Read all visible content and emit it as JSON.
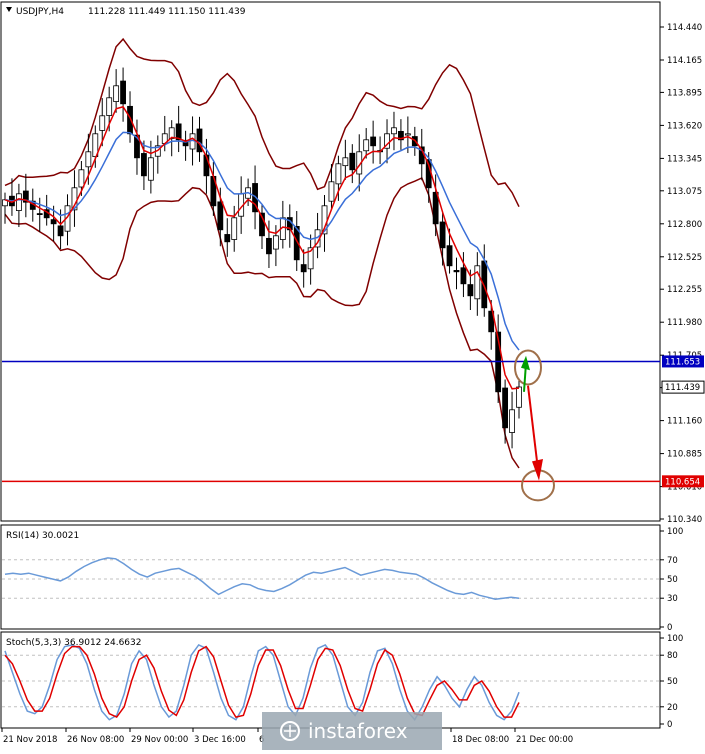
{
  "header": {
    "symbol": "USDJPY,H4",
    "ohlc": "111.228 111.449 111.150 111.439"
  },
  "colors": {
    "band": "#800000",
    "ema_fast": "#e00000",
    "ema_slow": "#3a6fd8",
    "support": "#e00000",
    "resistance": "#0000c0",
    "annotation": "#a0704a",
    "up_arrow": "#00a000",
    "down_arrow": "#e00000",
    "osc": "#6a9ad8"
  },
  "chart_data": [
    {
      "type": "candlestick",
      "title": "USDJPY,H4",
      "price_axis": {
        "ticks": [
          "114.440",
          "114.165",
          "113.895",
          "113.620",
          "113.345",
          "113.075",
          "112.800",
          "112.525",
          "112.255",
          "111.980",
          "111.705",
          "111.435",
          "111.160",
          "110.885",
          "110.610",
          "110.340"
        ],
        "range": [
          110.34,
          114.44
        ]
      },
      "time_axis": [
        "21 Nov 2018",
        "26 Nov 08:00",
        "29 Nov 00:00",
        "3 Dec 16:00",
        "6",
        "18 Dec 08:00",
        "21 Dec 00:00"
      ],
      "levels": [
        {
          "name": "resistance",
          "value": 111.653,
          "label": "111.653"
        },
        {
          "name": "support",
          "value": 110.654,
          "label": "110.654"
        }
      ],
      "current_price": {
        "value": 111.439,
        "label": "111.439"
      },
      "close_series": [
        113.0,
        112.95,
        113.05,
        112.98,
        112.92,
        112.88,
        112.85,
        112.8,
        112.7,
        112.95,
        113.1,
        113.25,
        113.4,
        113.55,
        113.7,
        113.85,
        113.95,
        113.8,
        113.55,
        113.35,
        113.2,
        113.35,
        113.45,
        113.55,
        113.6,
        113.5,
        113.45,
        113.55,
        113.4,
        113.2,
        112.95,
        112.75,
        112.65,
        112.85,
        113.05,
        113.1,
        112.9,
        112.7,
        112.55,
        112.7,
        112.85,
        112.75,
        112.5,
        112.4,
        112.6,
        112.75,
        112.95,
        113.15,
        113.3,
        113.35,
        113.25,
        113.4,
        113.5,
        113.45,
        113.4,
        113.55,
        113.6,
        113.5,
        113.55,
        113.45,
        113.3,
        113.1,
        112.8,
        112.6,
        112.45,
        112.4,
        112.3,
        112.2,
        112.45,
        112.1,
        111.9,
        111.4,
        111.1,
        111.25,
        111.44
      ]
    },
    {
      "type": "line",
      "title": "RSI(14) 30.0021",
      "ticks": [
        "100",
        "70",
        "50",
        "30",
        "0"
      ],
      "ylim": [
        0,
        100
      ],
      "values": [
        55,
        56,
        55,
        56,
        54,
        52,
        50,
        48,
        52,
        58,
        63,
        67,
        70,
        72,
        71,
        66,
        60,
        55,
        52,
        56,
        58,
        60,
        61,
        57,
        53,
        47,
        40,
        34,
        38,
        42,
        45,
        44,
        40,
        38,
        37,
        40,
        44,
        49,
        54,
        57,
        56,
        58,
        60,
        62,
        58,
        54,
        56,
        58,
        60,
        59,
        57,
        56,
        55,
        51,
        46,
        42,
        38,
        35,
        34,
        36,
        33,
        31,
        29,
        30,
        31,
        30
      ]
    },
    {
      "type": "line",
      "title": "Stoch(5,3,3) 36.9012 24.6632",
      "ticks": [
        "100",
        "80",
        "50",
        "20",
        "0"
      ],
      "ylim": [
        0,
        100
      ],
      "series": [
        {
          "values": [
            85,
            60,
            35,
            15,
            12,
            20,
            45,
            75,
            90,
            92,
            88,
            70,
            40,
            15,
            5,
            10,
            35,
            70,
            85,
            75,
            45,
            20,
            8,
            15,
            45,
            80,
            92,
            88,
            60,
            30,
            10,
            5,
            20,
            55,
            85,
            90,
            80,
            50,
            20,
            10,
            30,
            65,
            88,
            92,
            80,
            50,
            20,
            10,
            25,
            60,
            85,
            88,
            70,
            40,
            15,
            5,
            20,
            40,
            55,
            45,
            30,
            20,
            40,
            55,
            45,
            25,
            10,
            5,
            15,
            37
          ]
        },
        {
          "values": [
            80,
            70,
            50,
            28,
            15,
            15,
            30,
            58,
            82,
            90,
            90,
            80,
            58,
            30,
            12,
            8,
            20,
            50,
            75,
            80,
            65,
            38,
            16,
            10,
            28,
            60,
            85,
            90,
            78,
            50,
            22,
            8,
            10,
            35,
            68,
            86,
            86,
            68,
            40,
            18,
            18,
            45,
            75,
            88,
            86,
            68,
            40,
            18,
            15,
            40,
            70,
            86,
            80,
            58,
            30,
            12,
            10,
            28,
            45,
            50,
            40,
            28,
            28,
            45,
            50,
            38,
            20,
            8,
            8,
            25
          ]
        }
      ]
    }
  ],
  "watermark": "instaforex"
}
